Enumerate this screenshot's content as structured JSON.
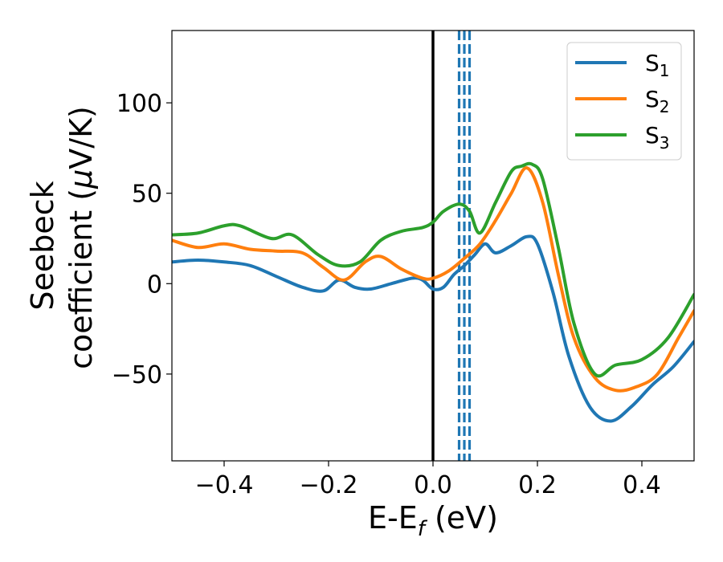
{
  "chart_data": {
    "type": "line",
    "xlabel": "E-E",
    "xlabel_sub": "f",
    "xlabel_unit": " (eV)",
    "ylabel_line1": "Seebeck",
    "ylabel_line2": "coefficient  (",
    "ylabel_mu": "μ",
    "ylabel_unit": "V/K)",
    "xlim": [
      -0.5,
      0.5
    ],
    "ylim": [
      -98,
      140
    ],
    "xticks": [
      -0.4,
      -0.2,
      0.0,
      0.2,
      0.4
    ],
    "xtick_labels": [
      "−0.4",
      "−0.2",
      "0.0",
      "0.2",
      "0.4"
    ],
    "yticks": [
      -50,
      0,
      50,
      100
    ],
    "ytick_labels": [
      "−50",
      "0",
      "50",
      "100"
    ],
    "grid": false,
    "legend_position": "top-right",
    "vertical_lines": [
      {
        "x": 0.0,
        "color": "#000000",
        "style": "solid"
      },
      {
        "x": 0.05,
        "color": "#1f77b4",
        "style": "dashed"
      },
      {
        "x": 0.06,
        "color": "#1f77b4",
        "style": "dashed"
      },
      {
        "x": 0.07,
        "color": "#1f77b4",
        "style": "dashed"
      }
    ],
    "series": [
      {
        "name": "S",
        "name_sub": "1",
        "color": "#1f77b4",
        "x": [
          -0.5,
          -0.45,
          -0.4,
          -0.35,
          -0.3,
          -0.25,
          -0.21,
          -0.18,
          -0.15,
          -0.12,
          -0.08,
          -0.04,
          -0.02,
          0.0,
          0.02,
          0.04,
          0.06,
          0.08,
          0.1,
          0.12,
          0.15,
          0.18,
          0.2,
          0.23,
          0.26,
          0.3,
          0.34,
          0.38,
          0.42,
          0.46,
          0.5
        ],
        "y": [
          12,
          13,
          12,
          10,
          4,
          -2,
          -4,
          2,
          -2,
          -3,
          0,
          3,
          2,
          -3,
          -2,
          5,
          10,
          16,
          22,
          17,
          21,
          26,
          22,
          -5,
          -40,
          -68,
          -76,
          -68,
          -56,
          -46,
          -32
        ]
      },
      {
        "name": "S",
        "name_sub": "2",
        "color": "#ff7f0e",
        "x": [
          -0.5,
          -0.45,
          -0.4,
          -0.35,
          -0.3,
          -0.25,
          -0.21,
          -0.17,
          -0.13,
          -0.1,
          -0.06,
          -0.02,
          0.0,
          0.03,
          0.06,
          0.09,
          0.12,
          0.15,
          0.18,
          0.21,
          0.24,
          0.27,
          0.31,
          0.35,
          0.39,
          0.43,
          0.47,
          0.5
        ],
        "y": [
          24,
          20,
          22,
          19,
          18,
          17,
          9,
          2,
          12,
          15,
          8,
          3,
          3,
          7,
          14,
          22,
          35,
          50,
          64,
          45,
          5,
          -30,
          -52,
          -59,
          -57,
          -50,
          -30,
          -15
        ]
      },
      {
        "name": "S",
        "name_sub": "3",
        "color": "#2ca02c",
        "x": [
          -0.5,
          -0.45,
          -0.4,
          -0.37,
          -0.31,
          -0.27,
          -0.22,
          -0.18,
          -0.14,
          -0.1,
          -0.06,
          -0.02,
          0.0,
          0.02,
          0.05,
          0.07,
          0.09,
          0.12,
          0.15,
          0.17,
          0.19,
          0.21,
          0.24,
          0.27,
          0.31,
          0.35,
          0.4,
          0.45,
          0.5
        ],
        "y": [
          27,
          28,
          32,
          32,
          25,
          27,
          16,
          10,
          12,
          24,
          29,
          31,
          34,
          40,
          44,
          40,
          28,
          45,
          62,
          65,
          66,
          58,
          20,
          -22,
          -50,
          -45,
          -42,
          -30,
          -6
        ]
      }
    ]
  }
}
